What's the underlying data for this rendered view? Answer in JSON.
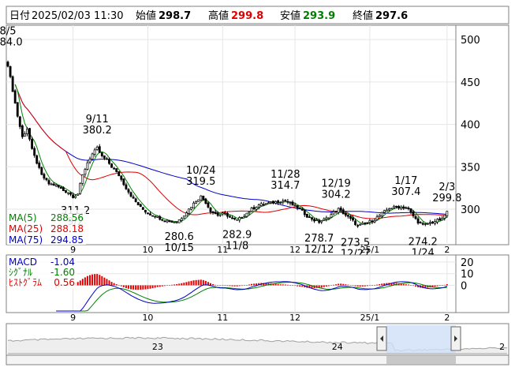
{
  "header": {
    "date_label": "日付",
    "datetime": "2025/02/03 11:30",
    "open_label": "始値",
    "open": "298.7",
    "high_label": "高値",
    "high": "299.8",
    "low_label": "安値",
    "low": "293.9",
    "close_label": "終値",
    "close": "297.6"
  },
  "colors": {
    "up": "#000000",
    "down": "#000000",
    "ma5": "#008000",
    "ma25": "#e00000",
    "ma75": "#0000c8",
    "macd": "#0000c8",
    "signal": "#008000",
    "hist_pos": "#e00000",
    "hist_neg": "#e00000",
    "high_text": "#e00000",
    "low_text": "#008000",
    "nav_fill": "#cfe0f7",
    "nav_line": "#a0a0a0"
  },
  "chart_data": {
    "type": "candlestick",
    "y_ticks": [
      "500",
      "450",
      "400",
      "350",
      "300"
    ],
    "ylim": [
      260,
      515
    ],
    "x_month_labels": [
      {
        "label": "9",
        "day": 27
      },
      {
        "label": "10",
        "day": 58
      },
      {
        "label": "11",
        "day": 89
      },
      {
        "label": "12",
        "day": 119
      },
      {
        "label": "25/1",
        "day": 150
      },
      {
        "label": "2",
        "day": 182
      }
    ],
    "day_range": [
      0,
      185
    ],
    "legend": [
      {
        "label": "MA(5)",
        "value": "288.56",
        "color_key": "ma5"
      },
      {
        "label": "MA(25)",
        "value": "288.18",
        "color_key": "ma25"
      },
      {
        "label": "MA(75)",
        "value": "294.85",
        "color_key": "ma75"
      }
    ],
    "annotations": [
      {
        "date": "8/5",
        "value": "484.0",
        "day": 0,
        "price": 484.0,
        "kind": "high"
      },
      {
        "date": "9/2",
        "value": "311.2",
        "day": 28,
        "price": 311.2,
        "kind": "low"
      },
      {
        "date": "9/11",
        "value": "380.2",
        "day": 37,
        "price": 380.2,
        "kind": "high"
      },
      {
        "date": "10/15",
        "value": "280.6",
        "day": 71,
        "price": 280.6,
        "kind": "low"
      },
      {
        "date": "10/24",
        "value": "319.5",
        "day": 80,
        "price": 319.5,
        "kind": "high"
      },
      {
        "date": "11/8",
        "value": "282.9",
        "day": 95,
        "price": 282.9,
        "kind": "low"
      },
      {
        "date": "11/28",
        "value": "314.7",
        "day": 115,
        "price": 314.7,
        "kind": "high"
      },
      {
        "date": "12/12",
        "value": "278.7",
        "day": 129,
        "price": 278.7,
        "kind": "low"
      },
      {
        "date": "12/19",
        "value": "304.2",
        "day": 136,
        "price": 304.2,
        "kind": "high"
      },
      {
        "date": "12/27",
        "value": "273.5",
        "day": 144,
        "price": 273.5,
        "kind": "low"
      },
      {
        "date": "1/17",
        "value": "307.4",
        "day": 165,
        "price": 307.4,
        "kind": "high"
      },
      {
        "date": "1/24",
        "value": "274.2",
        "day": 172,
        "price": 274.2,
        "kind": "low"
      },
      {
        "date": "2/3",
        "value": "299.8",
        "day": 182,
        "price": 299.8,
        "kind": "high"
      }
    ],
    "close_anchors": [
      [
        0,
        470
      ],
      [
        2,
        440
      ],
      [
        4,
        410
      ],
      [
        6,
        385
      ],
      [
        8,
        395
      ],
      [
        10,
        370
      ],
      [
        12,
        355
      ],
      [
        14,
        340
      ],
      [
        17,
        330
      ],
      [
        20,
        328
      ],
      [
        23,
        322
      ],
      [
        25,
        320
      ],
      [
        27,
        315
      ],
      [
        29,
        318
      ],
      [
        31,
        340
      ],
      [
        33,
        355
      ],
      [
        35,
        365
      ],
      [
        37,
        372
      ],
      [
        39,
        362
      ],
      [
        41,
        358
      ],
      [
        43,
        350
      ],
      [
        46,
        340
      ],
      [
        49,
        325
      ],
      [
        52,
        312
      ],
      [
        55,
        302
      ],
      [
        58,
        295
      ],
      [
        61,
        292
      ],
      [
        64,
        288
      ],
      [
        67,
        286
      ],
      [
        70,
        285
      ],
      [
        72,
        290
      ],
      [
        75,
        300
      ],
      [
        78,
        310
      ],
      [
        80,
        315
      ],
      [
        82,
        308
      ],
      [
        84,
        298
      ],
      [
        87,
        293
      ],
      [
        90,
        295
      ],
      [
        93,
        288
      ],
      [
        95,
        287
      ],
      [
        98,
        293
      ],
      [
        101,
        300
      ],
      [
        104,
        305
      ],
      [
        108,
        307
      ],
      [
        112,
        309
      ],
      [
        115,
        310
      ],
      [
        118,
        305
      ],
      [
        121,
        300
      ],
      [
        124,
        292
      ],
      [
        127,
        287
      ],
      [
        129,
        285
      ],
      [
        132,
        289
      ],
      [
        135,
        296
      ],
      [
        137,
        300
      ],
      [
        140,
        293
      ],
      [
        143,
        286
      ],
      [
        145,
        280
      ],
      [
        148,
        283
      ],
      [
        152,
        288
      ],
      [
        155,
        295
      ],
      [
        158,
        301
      ],
      [
        161,
        303
      ],
      [
        164,
        302
      ],
      [
        166,
        300
      ],
      [
        168,
        292
      ],
      [
        170,
        285
      ],
      [
        172,
        281
      ],
      [
        174,
        283
      ],
      [
        177,
        286
      ],
      [
        180,
        288
      ],
      [
        182,
        297.6
      ]
    ],
    "indicator": {
      "legend": [
        {
          "label": "MACD",
          "value": "-1.04",
          "color_key": "macd"
        },
        {
          "label": "ｼｸﾞﾅﾙ",
          "value": "-1.60",
          "color_key": "signal"
        },
        {
          "label": "ﾋｽﾄｸﾞﾗﾑ",
          "value": "0.56",
          "color_key": "hist_pos"
        }
      ],
      "y_ticks": [
        "20",
        "10",
        "0"
      ],
      "ylim": [
        -22,
        24
      ]
    },
    "navigator": {
      "labels": [
        {
          "label": "23",
          "pos": 0.3
        },
        {
          "label": "24",
          "pos": 0.66
        },
        {
          "label": "2",
          "pos": 0.99
        }
      ]
    }
  }
}
